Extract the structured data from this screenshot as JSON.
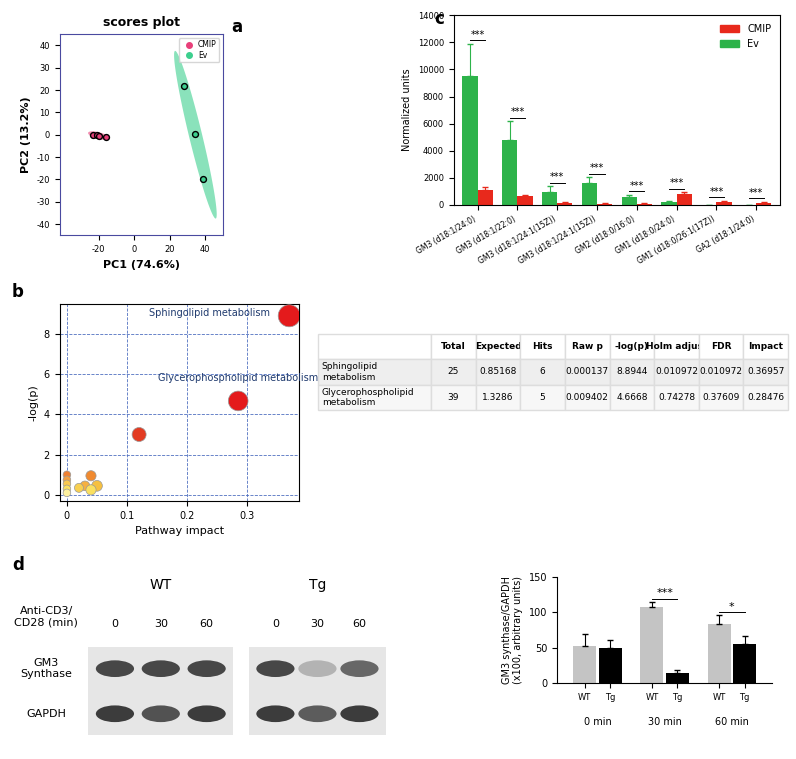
{
  "chart_data": [
    {
      "type": "scatter",
      "title": "scores plot",
      "x_label": "PC1 (74.6%)",
      "y_label": "PC2 (13.2%)",
      "xlim": [
        -42,
        50
      ],
      "xticks": [
        -20,
        0,
        20,
        40
      ],
      "ylim": [
        -45,
        45
      ],
      "yticks": [
        -40,
        -30,
        -20,
        -10,
        0,
        10,
        20,
        30,
        40
      ],
      "legend": "upper right",
      "series": [
        {
          "name": "CMIP",
          "color": "#e8407a",
          "x": [
            -23,
            -21,
            -20,
            -16
          ],
          "y": [
            0,
            -0.3,
            -0.6,
            -1.1
          ],
          "ellipse": {
            "center": [
              -20,
              -0.4
            ],
            "major": [
              6,
              -1.2
            ],
            "minor": [
              0.2,
              1.5
            ]
          }
        },
        {
          "name": "Ev",
          "color": "#3ccf8e",
          "x": [
            28,
            34,
            39
          ],
          "y": [
            22,
            0.5,
            -20
          ],
          "ellipse": {
            "center": [
              34.5,
              0
            ],
            "major": [
              11.5,
              -37.5
            ],
            "minor": [
              3.5,
              1.0
            ]
          }
        }
      ]
    },
    {
      "type": "bubble",
      "x_label": "Pathway impact",
      "y_label": "-log(p)",
      "xlim": [
        -0.012,
        0.385
      ],
      "xticks": [
        0,
        0.1,
        0.2,
        0.3
      ],
      "ylim": [
        -0.3,
        9.5
      ],
      "yticks": [
        0,
        2,
        4,
        6,
        8
      ],
      "grid": true,
      "x": [
        0.36957,
        0.28476,
        0.12,
        0.0,
        0.0,
        0.0,
        0.0,
        0.0,
        0.04,
        0.03,
        0.05,
        0.04,
        0.02
      ],
      "y": [
        8.8944,
        4.6668,
        3.0,
        1.0,
        0.75,
        0.55,
        0.3,
        0.1,
        0.95,
        0.45,
        0.45,
        0.25,
        0.35
      ],
      "colors": [
        "#e41a1c",
        "#e41a1c",
        "#e33b22",
        "#f08030",
        "#f4a040",
        "#f8c850",
        "#fae060",
        "#fcf0a0",
        "#f08a30",
        "#f6b040",
        "#f6c040",
        "#fae060",
        "#f8d050"
      ],
      "annotations": [
        {
          "text": "Sphingolipid metabolism",
          "point": 0
        },
        {
          "text": "Glycerophospholipid metabolism",
          "point": 1
        }
      ]
    },
    {
      "type": "bar",
      "y_label": "Normalized units",
      "categories": [
        "GM3 (d18:1/24:0)",
        "GM3 (d18:1/22:0)",
        "GM3 (d18:1/24:1(15Z))",
        "GM3 (d18:1/24:1(15Z))",
        "GM2 (d18:0/16:0)",
        "GM1 (d18:0/24:0)",
        "GM1 (d18:0/26:1(17Z))",
        "GA2 (d18:1/24:0)"
      ],
      "ylim": [
        0,
        14000
      ],
      "yticks": [
        0,
        2000,
        4000,
        6000,
        8000,
        10000,
        12000,
        14000
      ],
      "legend": "upper right",
      "series": [
        {
          "name": "CMIP",
          "color": "#e8291c",
          "values": [
            1100,
            650,
            150,
            100,
            100,
            800,
            200,
            150
          ],
          "errors": [
            200,
            100,
            50,
            30,
            30,
            150,
            100,
            80
          ]
        },
        {
          "name": "Ev",
          "color": "#2db34a",
          "values": [
            9500,
            4800,
            950,
            1600,
            600,
            200,
            20,
            20
          ],
          "errors": [
            2400,
            1400,
            450,
            450,
            150,
            100,
            10,
            10
          ]
        }
      ],
      "annotations": [
        "***",
        "***",
        "***",
        "***",
        "***",
        "***",
        "***",
        "***"
      ]
    },
    {
      "type": "bar",
      "y_label": "GM3 synthase/GAPDH\n(x100, arbitrary units)",
      "categories": [
        "0 min",
        "30 min",
        "60 min"
      ],
      "ylim": [
        0,
        150
      ],
      "yticks": [
        0,
        50,
        100,
        150
      ],
      "series": [
        {
          "name": "WT",
          "color": "#c4c4c4",
          "values": [
            52,
            107,
            83
          ],
          "errors": [
            18,
            8,
            13
          ]
        },
        {
          "name": "Tg",
          "color": "#000000",
          "values": [
            49,
            14,
            55
          ],
          "errors": [
            12,
            4,
            12
          ]
        }
      ],
      "annotations": [
        null,
        "***",
        "*"
      ]
    }
  ],
  "table": {
    "columns": [
      "Total",
      "Expected",
      "Hits",
      "Raw p",
      "-log(p)",
      "Holm adjust",
      "FDR",
      "Impact"
    ],
    "rows": [
      {
        "label": "Sphingolipid\nmetabolism",
        "cells": [
          "25",
          "0.85168",
          "6",
          "0.000137",
          "8.8944",
          "0.010972",
          "0.010972",
          "0.36957"
        ]
      },
      {
        "label": "Glycerophospholipid\nmetabolism",
        "cells": [
          "39",
          "1.3286",
          "5",
          "0.009402",
          "4.6668",
          "0.74278",
          "0.37609",
          "0.28476"
        ]
      }
    ]
  },
  "blot": {
    "stimulus": "Anti-CD3/\nCD28 (min)",
    "rows": [
      "GM3\nSynthase",
      "GAPDH"
    ],
    "groups": [
      {
        "label": "WT",
        "times": [
          "0",
          "30",
          "60"
        ],
        "band_intensity": [
          [
            0.85,
            0.85,
            0.85
          ],
          [
            0.9,
            0.8,
            0.9
          ]
        ]
      },
      {
        "label": "Tg",
        "times": [
          "0",
          "30",
          "60"
        ],
        "band_intensity": [
          [
            0.85,
            0.35,
            0.7
          ],
          [
            0.9,
            0.75,
            0.9
          ]
        ]
      }
    ]
  },
  "panels": [
    "a",
    "b",
    "c",
    "d"
  ]
}
